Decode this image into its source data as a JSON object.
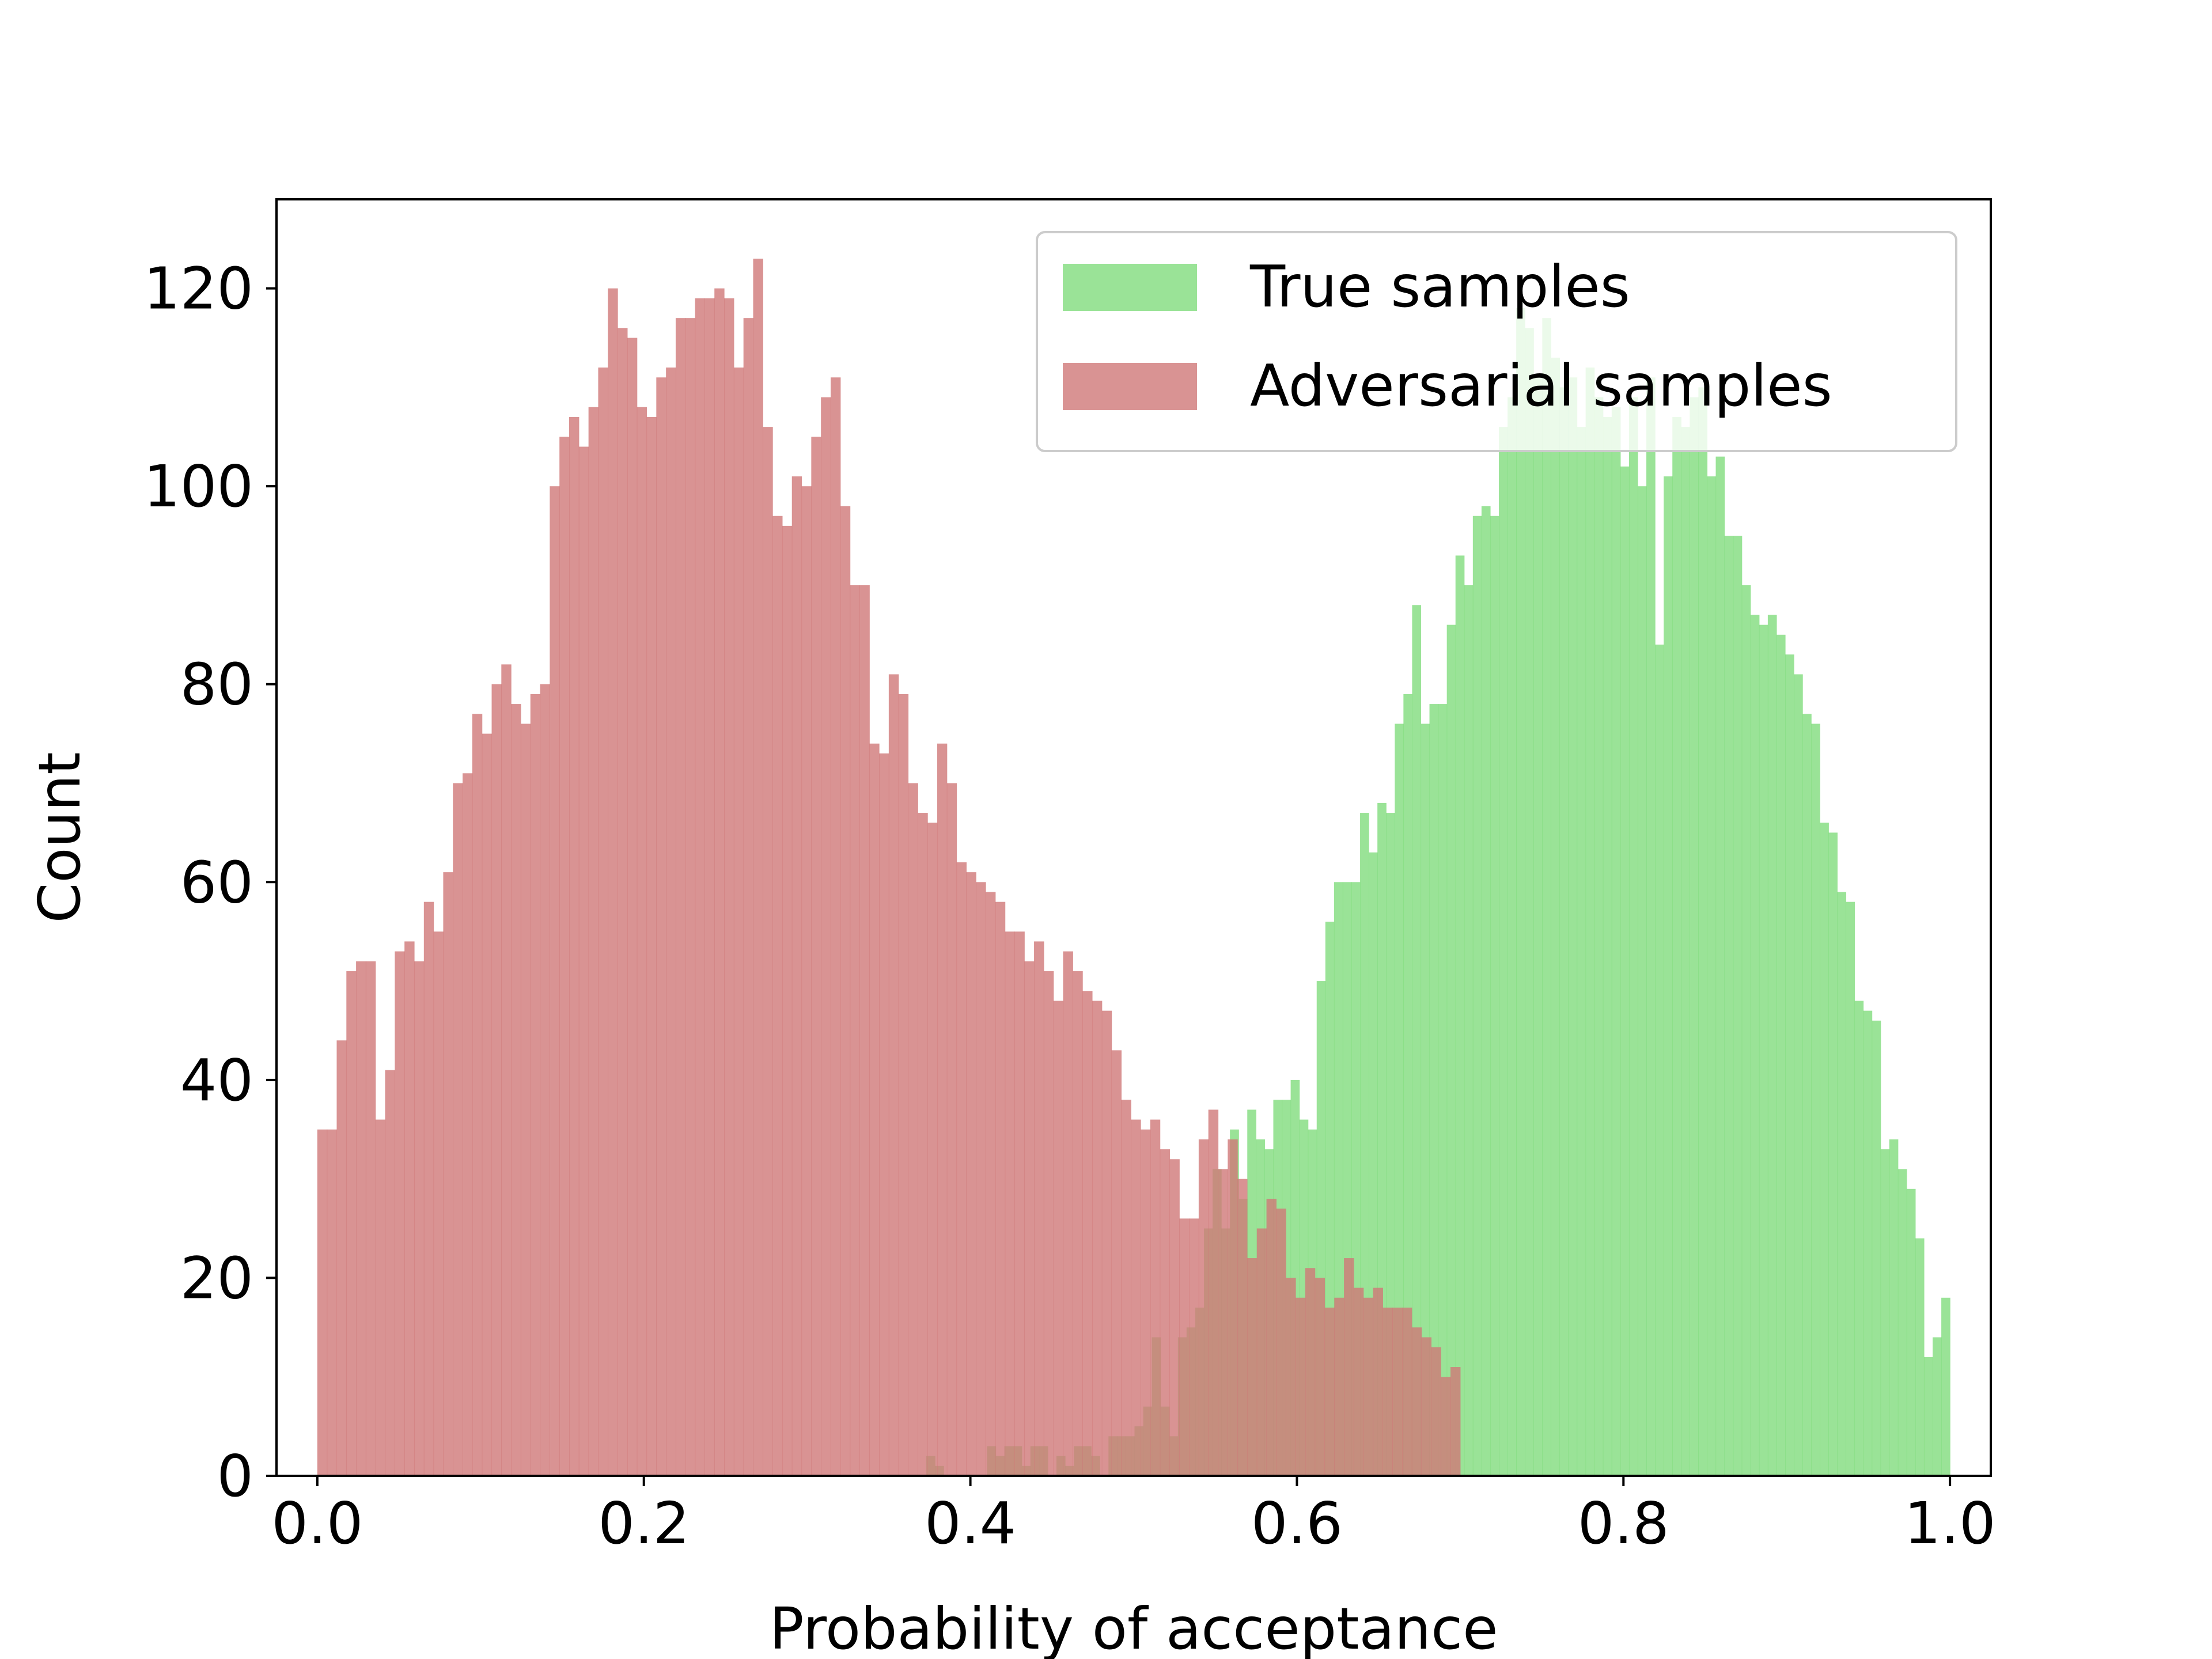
{
  "chart_data": {
    "type": "histogram",
    "xlabel": "Probability of acceptance",
    "ylabel": "Count",
    "xlim": [
      -0.025,
      1.025
    ],
    "ylim": [
      0,
      129
    ],
    "xticks": [
      "0.0",
      "0.2",
      "0.4",
      "0.6",
      "0.8",
      "1.0"
    ],
    "yticks": [
      "0",
      "20",
      "40",
      "60",
      "80",
      "100",
      "120"
    ],
    "grid": false,
    "legend_position": "top-right",
    "series": [
      {
        "name": "True samples",
        "color": "#7ddb7a",
        "opacity": 0.78,
        "bin_range": [
          0.373,
          1.0
        ],
        "values": [
          2,
          1,
          0,
          0,
          0,
          0,
          0,
          3,
          2,
          3,
          3,
          1,
          3,
          3,
          0,
          2,
          1,
          3,
          3,
          2,
          0,
          4,
          4,
          4,
          5,
          7,
          14,
          7,
          4,
          14,
          15,
          17,
          25,
          31,
          25,
          35,
          28,
          37,
          34,
          33,
          38,
          38,
          40,
          36,
          35,
          50,
          56,
          60,
          60,
          60,
          67,
          63,
          68,
          67,
          76,
          79,
          88,
          76,
          78,
          78,
          86,
          93,
          90,
          97,
          98,
          97,
          106,
          109,
          118,
          116,
          111,
          117,
          113,
          110,
          111,
          106,
          112,
          109,
          107,
          108,
          102,
          109,
          100,
          111,
          84,
          101,
          107,
          106,
          109,
          110,
          101,
          103,
          95,
          95,
          90,
          87,
          86,
          87,
          85,
          83,
          81,
          77,
          76,
          66,
          65,
          59,
          58,
          48,
          47,
          46,
          33,
          34,
          31,
          29,
          24,
          12,
          14,
          18
        ]
      },
      {
        "name": "Adversarial samples",
        "color": "#d07878",
        "opacity": 0.8,
        "bin_range": [
          0.0,
          0.7
        ],
        "values": [
          35,
          35,
          44,
          51,
          52,
          52,
          36,
          41,
          53,
          54,
          52,
          58,
          55,
          61,
          70,
          71,
          77,
          75,
          80,
          82,
          78,
          76,
          79,
          80,
          100,
          105,
          107,
          104,
          108,
          112,
          120,
          116,
          115,
          108,
          107,
          111,
          112,
          117,
          117,
          119,
          119,
          120,
          119,
          112,
          117,
          123,
          106,
          97,
          96,
          101,
          100,
          105,
          109,
          111,
          98,
          90,
          90,
          74,
          73,
          81,
          79,
          70,
          67,
          66,
          74,
          70,
          62,
          61,
          60,
          59,
          58,
          55,
          55,
          52,
          54,
          51,
          48,
          53,
          51,
          49,
          48,
          47,
          43,
          38,
          36,
          35,
          36,
          33,
          32,
          26,
          26,
          34,
          37,
          31,
          34,
          30,
          22,
          25,
          28,
          27,
          20,
          18,
          21,
          20,
          17,
          18,
          22,
          19,
          18,
          19,
          17,
          17,
          17,
          15,
          14,
          13,
          10,
          11
        ]
      }
    ]
  }
}
